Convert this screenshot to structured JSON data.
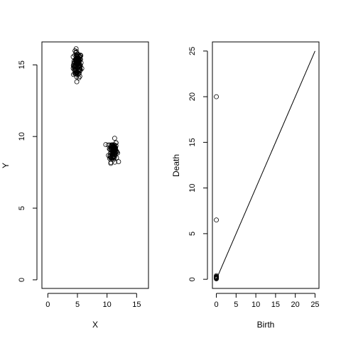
{
  "chart_data": [
    {
      "type": "scatter",
      "title": "",
      "xlabel": "X",
      "ylabel": "Y",
      "xlim": [
        -1.0,
        17.0
      ],
      "ylim": [
        -0.6,
        16.6
      ],
      "xticks": [
        0,
        5,
        10,
        15
      ],
      "yticks": [
        0,
        5,
        10,
        15
      ],
      "clusters": [
        {
          "name": "cluster-1",
          "center": [
            5.0,
            15.0
          ],
          "spread": [
            0.35,
            0.45
          ],
          "n": 110
        },
        {
          "name": "cluster-2",
          "center": [
            11.0,
            9.0
          ],
          "spread": [
            0.35,
            0.38
          ],
          "n": 90
        }
      ]
    },
    {
      "type": "scatter",
      "title": "",
      "xlabel": "Birth",
      "ylabel": "Death",
      "xlim": [
        -1.0,
        26.0
      ],
      "ylim": [
        -1.0,
        26.0
      ],
      "xticks": [
        0,
        5,
        10,
        15,
        20,
        25
      ],
      "yticks": [
        0,
        5,
        10,
        15,
        20,
        25
      ],
      "points": [
        [
          0,
          20.0
        ],
        [
          0,
          6.5
        ],
        [
          0,
          0.4
        ],
        [
          0,
          0.3
        ],
        [
          0,
          0.25
        ],
        [
          0,
          0.2
        ],
        [
          0,
          0.15
        ],
        [
          0,
          0.1
        ],
        [
          0,
          0.05
        ]
      ],
      "diagonal": [
        [
          0,
          0
        ],
        [
          25,
          25
        ]
      ]
    }
  ]
}
